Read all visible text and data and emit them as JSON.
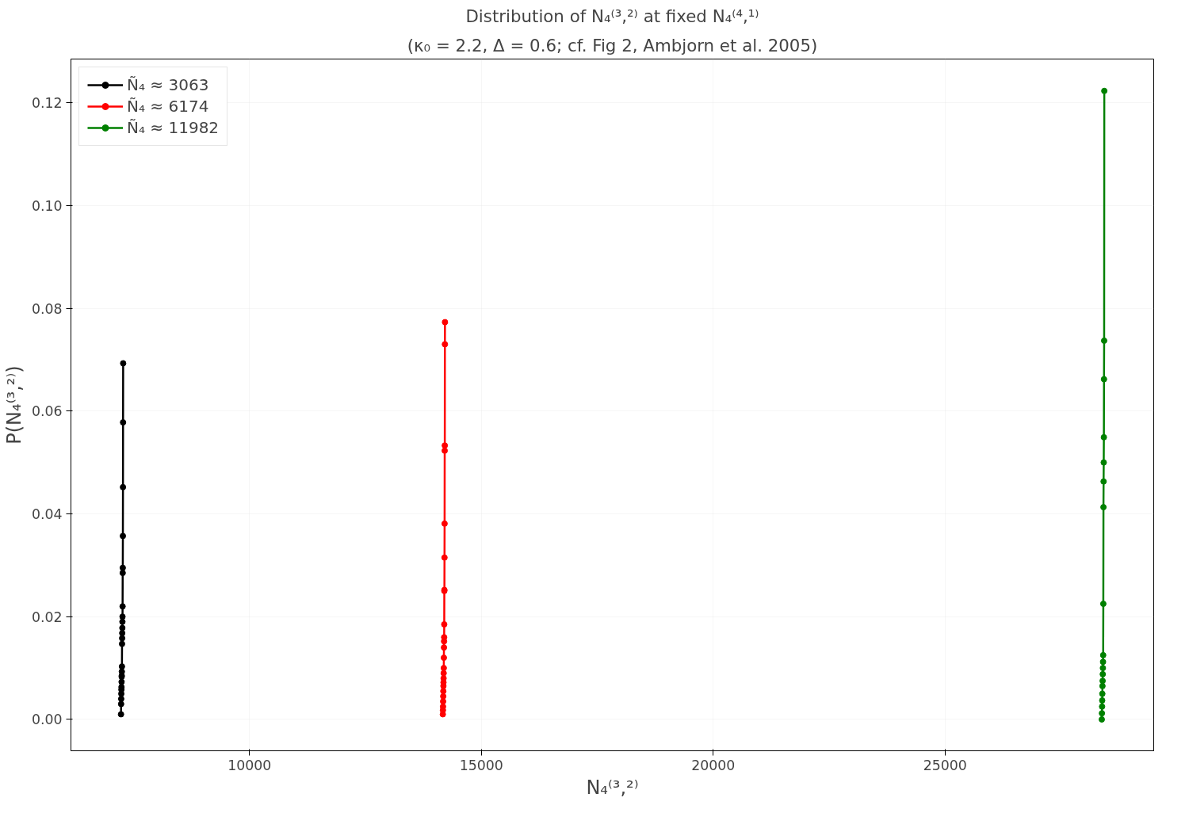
{
  "chart_data": {
    "type": "line",
    "title": "Distribution of N₄⁽³,²⁾ at fixed N₄⁽⁴,¹⁾",
    "subtitle": "(κ₀ = 2.2, Δ = 0.6; cf. Fig 2, Ambjorn et al. 2005)",
    "xlabel": "N₄⁽³,²⁾",
    "ylabel": "P(N₄⁽³,²⁾)",
    "xlim": [
      6150,
      29500
    ],
    "ylim": [
      -0.0061,
      0.1285
    ],
    "xticks": [
      10000,
      15000,
      20000,
      25000
    ],
    "yticks": [
      {
        "value": 0,
        "label": "0.00"
      },
      {
        "value": 0.02,
        "label": "0.02"
      },
      {
        "value": 0.04,
        "label": "0.04"
      },
      {
        "value": 0.06,
        "label": "0.06"
      },
      {
        "value": 0.08,
        "label": "0.08"
      },
      {
        "value": 0.1,
        "label": "0.10"
      },
      {
        "value": 0.12,
        "label": "0.12"
      }
    ],
    "grid": true,
    "legend": "top left",
    "marker": "circle",
    "line_style": "solid",
    "series": [
      {
        "name": "Ñ₄ ≈ 3063",
        "color": "#000000",
        "x": [
          7230,
          7232,
          7234,
          7236,
          7238,
          7240,
          7242,
          7244,
          7246,
          7248,
          7250,
          7252,
          7254,
          7256,
          7258,
          7260,
          7262,
          7264,
          7266,
          7268,
          7270,
          7272,
          7274,
          7276
        ],
        "values": [
          0.001,
          0.003,
          0.004,
          0.005,
          0.0058,
          0.0063,
          0.0073,
          0.0083,
          0.0085,
          0.0093,
          0.0103,
          0.0147,
          0.0158,
          0.0168,
          0.0178,
          0.019,
          0.02,
          0.022,
          0.0285,
          0.0295,
          0.0357,
          0.0452,
          0.0578,
          0.0693
        ]
      },
      {
        "name": "Ñ₄ ≈ 6174",
        "color": "#ff0000",
        "x": [
          14170,
          14172,
          14174,
          14176,
          14178,
          14180,
          14182,
          14184,
          14186,
          14188,
          14190,
          14192,
          14194,
          14196,
          14198,
          14200,
          14202,
          14204,
          14206,
          14208,
          14210,
          14212,
          14214,
          14216
        ],
        "values": [
          0.001,
          0.0018,
          0.0025,
          0.0035,
          0.0045,
          0.0055,
          0.0065,
          0.0072,
          0.008,
          0.009,
          0.01,
          0.012,
          0.014,
          0.0152,
          0.016,
          0.0185,
          0.025,
          0.0252,
          0.0315,
          0.0381,
          0.0523,
          0.0533,
          0.073,
          0.0773
        ]
      },
      {
        "name": "Ñ₄ ≈ 11982",
        "color": "#008000",
        "x": [
          28380,
          28383,
          28386,
          28389,
          28392,
          28395,
          28398,
          28401,
          28404,
          28407,
          28410,
          28413,
          28416,
          28419,
          28422,
          28425,
          28428,
          28431,
          28434
        ],
        "values": [
          0.0,
          0.0012,
          0.0025,
          0.0037,
          0.005,
          0.0065,
          0.0075,
          0.0088,
          0.01,
          0.0112,
          0.0125,
          0.0225,
          0.0413,
          0.0463,
          0.05,
          0.0549,
          0.0662,
          0.0737,
          0.1223
        ]
      }
    ]
  }
}
